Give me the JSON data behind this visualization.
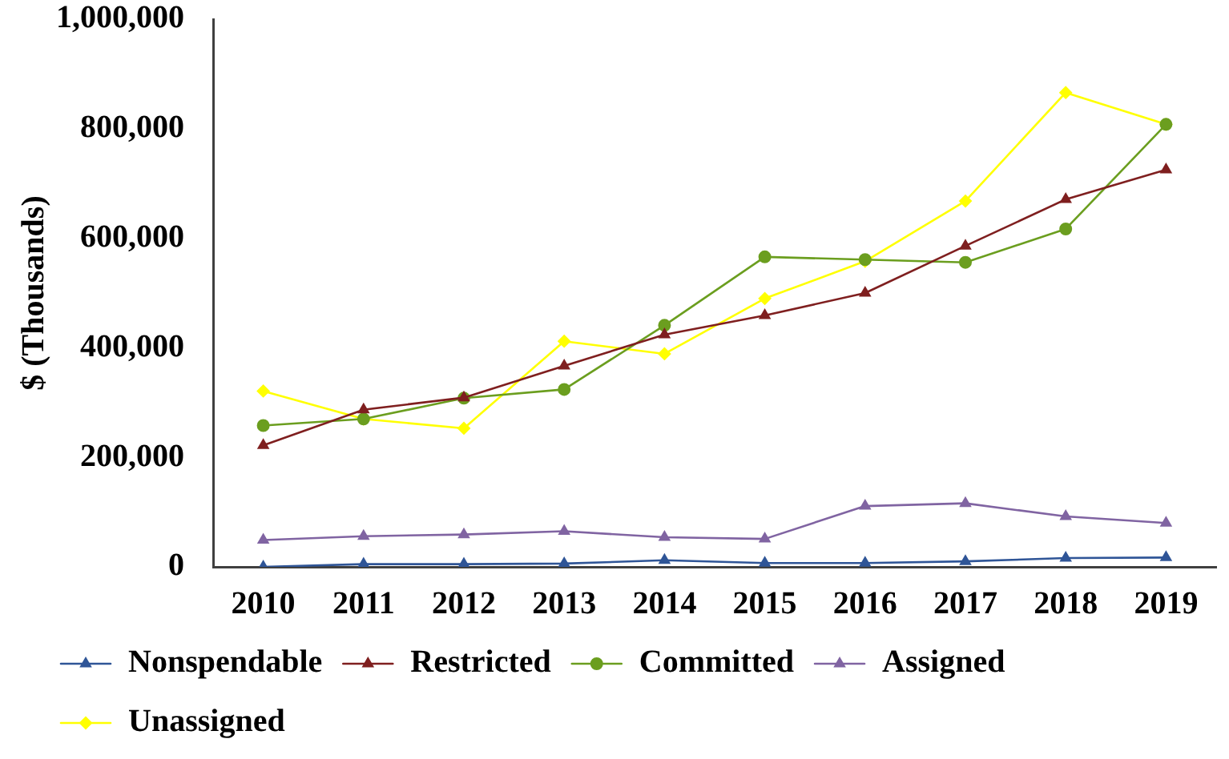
{
  "chart_data": {
    "type": "line",
    "ylabel": "$ (Thousands)",
    "categories": [
      "2010",
      "2011",
      "2012",
      "2013",
      "2014",
      "2015",
      "2016",
      "2017",
      "2018",
      "2019"
    ],
    "series": [
      {
        "name": "Nonspendable",
        "color": "#2f5597",
        "marker": "triangle",
        "values": [
          0,
          5000,
          5000,
          6000,
          12000,
          7000,
          7000,
          10000,
          16000,
          17000
        ]
      },
      {
        "name": "Restricted",
        "color": "#7f1f1f",
        "marker": "triangle",
        "values": [
          222000,
          287000,
          309000,
          367000,
          424000,
          459000,
          500000,
          586000,
          671000,
          725000
        ]
      },
      {
        "name": "Committed",
        "color": "#6b9e1f",
        "marker": "circle",
        "values": [
          258000,
          270000,
          308000,
          324000,
          441000,
          566000,
          561000,
          556000,
          617000,
          808000
        ]
      },
      {
        "name": "Assigned",
        "color": "#8064a2",
        "marker": "triangle",
        "values": [
          49000,
          56000,
          59000,
          65000,
          54000,
          51000,
          111000,
          116000,
          92000,
          80000
        ]
      },
      {
        "name": "Unassigned",
        "color": "#ffff00",
        "marker": "diamond",
        "values": [
          321000,
          270000,
          253000,
          412000,
          389000,
          490000,
          558000,
          668000,
          866000,
          808000
        ]
      }
    ],
    "ylim": [
      0,
      1000000
    ],
    "yticks": [
      0,
      {
        "value": 200000,
        "label": "200,000"
      },
      {
        "value": 400000,
        "label": "400,000"
      },
      {
        "value": 600000,
        "label": "600,000"
      },
      {
        "value": 800000,
        "label": "800,000"
      },
      {
        "value": 1000000,
        "label": "1,000,000"
      }
    ],
    "grid": false,
    "legend": "bottom left",
    "line_style": "solid"
  }
}
